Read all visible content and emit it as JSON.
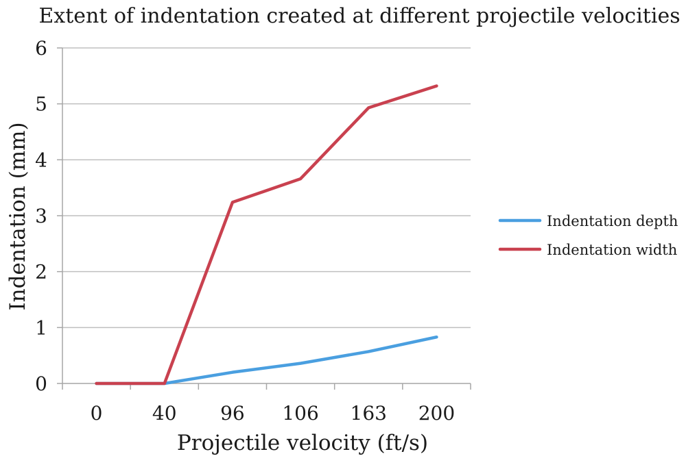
{
  "chart_data": {
    "type": "line",
    "title": "Extent of indentation created at different projectile velocities",
    "xlabel": "Projectile velocity (ft/s)",
    "ylabel": "Indentation (mm)",
    "categories": [
      "0",
      "40",
      "96",
      "106",
      "163",
      "200"
    ],
    "ylim": [
      0,
      6
    ],
    "yticks": [
      "0",
      "1",
      "2",
      "3",
      "4",
      "5",
      "6"
    ],
    "grid": true,
    "legend_position": "right",
    "series": [
      {
        "name": "Indentation depth",
        "color": "#4a9fe0",
        "values": [
          0,
          0,
          0.2,
          0.36,
          0.57,
          0.83
        ]
      },
      {
        "name": "Indentation width",
        "color": "#c9414f",
        "values": [
          0,
          0,
          3.24,
          3.66,
          4.93,
          5.32
        ]
      }
    ]
  }
}
